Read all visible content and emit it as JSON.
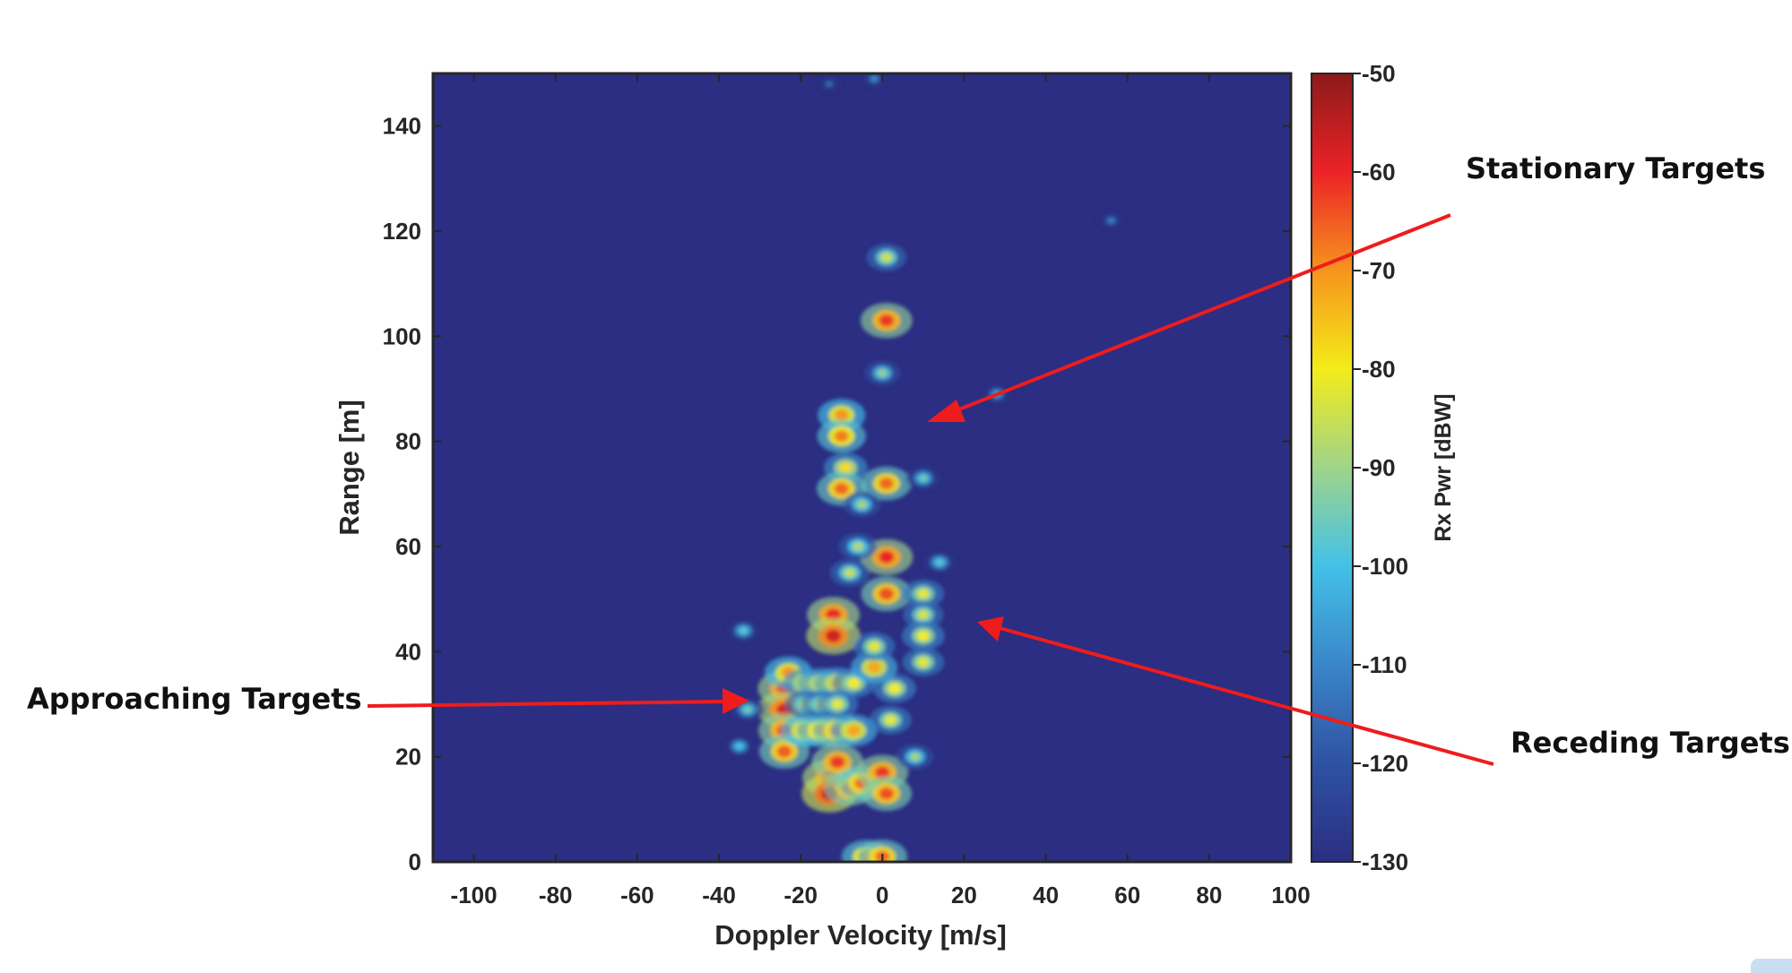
{
  "chart_data": {
    "type": "heatmap",
    "xlabel": "Doppler Velocity [m/s]",
    "ylabel": "Range [m]",
    "xlim": [
      -110,
      100
    ],
    "ylim": [
      0,
      150
    ],
    "x_ticks": [
      -100,
      -80,
      -60,
      -40,
      -20,
      0,
      20,
      40,
      60,
      80,
      100
    ],
    "y_ticks": [
      0,
      20,
      40,
      60,
      80,
      100,
      120,
      140
    ],
    "colorbar": {
      "label": "Rx Pwr [dBW]",
      "range": [
        -130,
        -50
      ],
      "ticks": [
        -50,
        -60,
        -70,
        -80,
        -90,
        -100,
        -110,
        -120,
        -130
      ],
      "colormap": "jet"
    },
    "background_color": "#2b2e82",
    "returns": [
      {
        "x": -24,
        "y": 33,
        "power": -60
      },
      {
        "x": -24,
        "y": 29,
        "power": -58
      },
      {
        "x": -24,
        "y": 25,
        "power": -62
      },
      {
        "x": -24,
        "y": 21,
        "power": -65
      },
      {
        "x": -23,
        "y": 36,
        "power": -70
      },
      {
        "x": -19,
        "y": 34,
        "power": -78
      },
      {
        "x": -15,
        "y": 34,
        "power": -76
      },
      {
        "x": -11,
        "y": 34,
        "power": -74
      },
      {
        "x": -7,
        "y": 34,
        "power": -80
      },
      {
        "x": -19,
        "y": 25,
        "power": -70
      },
      {
        "x": -15,
        "y": 25,
        "power": -68
      },
      {
        "x": -11,
        "y": 25,
        "power": -66
      },
      {
        "x": -7,
        "y": 25,
        "power": -72
      },
      {
        "x": -19,
        "y": 30,
        "power": -85
      },
      {
        "x": -15,
        "y": 30,
        "power": -84
      },
      {
        "x": -11,
        "y": 30,
        "power": -82
      },
      {
        "x": -12,
        "y": 47,
        "power": -60
      },
      {
        "x": -12,
        "y": 43,
        "power": -57
      },
      {
        "x": -13,
        "y": 16,
        "power": -58
      },
      {
        "x": -13,
        "y": 13,
        "power": -55
      },
      {
        "x": -11,
        "y": 19,
        "power": -62
      },
      {
        "x": -8,
        "y": 14,
        "power": -64
      },
      {
        "x": -5,
        "y": 15,
        "power": -66
      },
      {
        "x": 0,
        "y": 17,
        "power": -62
      },
      {
        "x": 1,
        "y": 13,
        "power": -64
      },
      {
        "x": -4,
        "y": 1,
        "power": -68
      },
      {
        "x": 0,
        "y": 1,
        "power": -66
      },
      {
        "x": -10,
        "y": 85,
        "power": -70
      },
      {
        "x": -10,
        "y": 81,
        "power": -68
      },
      {
        "x": -9,
        "y": 75,
        "power": -78
      },
      {
        "x": -10,
        "y": 71,
        "power": -66
      },
      {
        "x": 1,
        "y": 103,
        "power": -62
      },
      {
        "x": 1,
        "y": 115,
        "power": -85
      },
      {
        "x": 0,
        "y": 93,
        "power": -92
      },
      {
        "x": 1,
        "y": 72,
        "power": -66
      },
      {
        "x": 1,
        "y": 58,
        "power": -60
      },
      {
        "x": 1,
        "y": 51,
        "power": -64
      },
      {
        "x": -5,
        "y": 68,
        "power": -90
      },
      {
        "x": -6,
        "y": 60,
        "power": -88
      },
      {
        "x": 10,
        "y": 51,
        "power": -82
      },
      {
        "x": 10,
        "y": 47,
        "power": -84
      },
      {
        "x": 10,
        "y": 43,
        "power": -80
      },
      {
        "x": 10,
        "y": 38,
        "power": -82
      },
      {
        "x": 3,
        "y": 33,
        "power": -80
      },
      {
        "x": 2,
        "y": 27,
        "power": -82
      },
      {
        "x": 8,
        "y": 20,
        "power": -90
      },
      {
        "x": -33,
        "y": 29,
        "power": -96
      },
      {
        "x": -35,
        "y": 22,
        "power": -100
      },
      {
        "x": -34,
        "y": 44,
        "power": -98
      },
      {
        "x": 28,
        "y": 89,
        "power": -105
      },
      {
        "x": 56,
        "y": 122,
        "power": -112
      },
      {
        "x": 14,
        "y": 57,
        "power": -98
      },
      {
        "x": 10,
        "y": 73,
        "power": -96
      },
      {
        "x": -2,
        "y": 149,
        "power": -110
      },
      {
        "x": -13,
        "y": 148,
        "power": -115
      },
      {
        "x": -2,
        "y": 37,
        "power": -72
      },
      {
        "x": -2,
        "y": 41,
        "power": -82
      },
      {
        "x": -8,
        "y": 55,
        "power": -86
      }
    ]
  },
  "annotations": [
    {
      "id": "stationary",
      "text": "Stationary Targets"
    },
    {
      "id": "approaching",
      "text": "Approaching Targets"
    },
    {
      "id": "receding",
      "text": "Receding Targets"
    }
  ],
  "colors": {
    "arrow": "#ee1c1c",
    "plot_background": "#2b2e82",
    "axis": "#262626"
  }
}
